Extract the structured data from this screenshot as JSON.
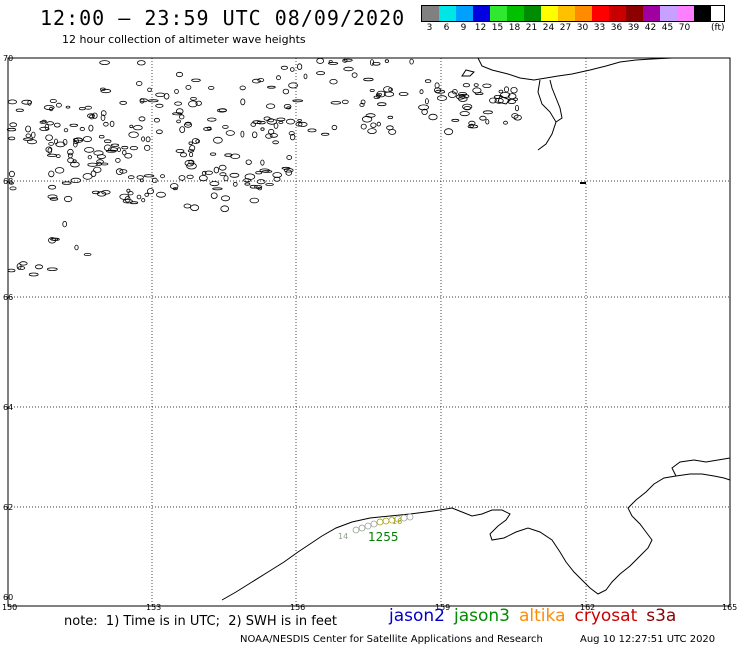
{
  "header": {
    "title": "12:00 – 23:59 UTC 08/09/2020",
    "subtitle": "12 hour collection of altimeter wave heights"
  },
  "legend": {
    "unit": "(ft)",
    "entries": [
      {
        "label": "3",
        "color": "#808080"
      },
      {
        "label": "6",
        "color": "#00e5e5"
      },
      {
        "label": "9",
        "color": "#00a0ff"
      },
      {
        "label": "12",
        "color": "#0000e0"
      },
      {
        "label": "15",
        "color": "#30e830"
      },
      {
        "label": "18",
        "color": "#00c000"
      },
      {
        "label": "21",
        "color": "#008c00"
      },
      {
        "label": "24",
        "color": "#ffff00"
      },
      {
        "label": "27",
        "color": "#ffc000"
      },
      {
        "label": "30",
        "color": "#ff8c00"
      },
      {
        "label": "33",
        "color": "#ff0000"
      },
      {
        "label": "36",
        "color": "#c80000"
      },
      {
        "label": "39",
        "color": "#8c0000"
      },
      {
        "label": "42",
        "color": "#a000a0"
      },
      {
        "label": "45",
        "color": "#c8a0ff"
      },
      {
        "label": "70",
        "color": "#ff80ff"
      },
      {
        "label": "",
        "color": "#000000"
      }
    ]
  },
  "map": {
    "lat_labels": [
      "70",
      "68",
      "66",
      "64",
      "62",
      "60"
    ],
    "lon_labels": [
      "150",
      "153",
      "156",
      "159",
      "162",
      "165"
    ],
    "obs_labels": [
      {
        "text": "1255",
        "color": "#008000"
      },
      {
        "text": "14",
        "color": "#8ca08c"
      },
      {
        "text": "16",
        "color": "#a0a000"
      }
    ]
  },
  "footer": {
    "note": "note:  1) Time is in UTC;  2) SWH is in feet",
    "satellites": [
      {
        "name": "jason2",
        "color": "#0000cc"
      },
      {
        "name": "jason3",
        "color": "#008c00"
      },
      {
        "name": "altika",
        "color": "#ff8c00"
      },
      {
        "name": "cryosat",
        "color": "#cc0000"
      },
      {
        "name": "s3a",
        "color": "#8c0000"
      }
    ],
    "credit": "NOAA/NESDIS Center for Satellite Applications and Research",
    "timestamp": "Aug 10 12:27:51 UTC 2020"
  }
}
